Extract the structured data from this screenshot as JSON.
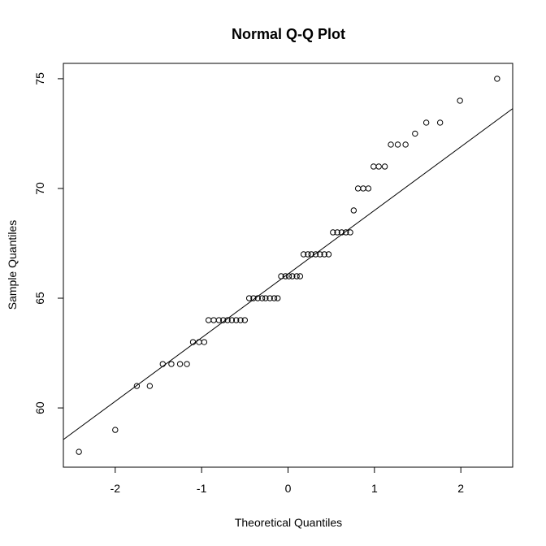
{
  "chart_data": {
    "type": "scatter",
    "title": "Normal Q-Q Plot",
    "xlabel": "Theoretical Quantiles",
    "ylabel": "Sample Quantiles",
    "xlim": [
      -2.6,
      2.6
    ],
    "ylim": [
      57.3,
      75.7
    ],
    "xticks": [
      -2,
      -1,
      0,
      1,
      2
    ],
    "yticks": [
      60,
      65,
      70,
      75
    ],
    "xtick_labels": [
      "-2",
      "-1",
      "0",
      "1",
      "2"
    ],
    "ytick_labels": [
      "60",
      "65",
      "70",
      "75"
    ],
    "grid": false,
    "marker": "open-circle",
    "reference_line": {
      "slope": 2.9,
      "intercept": 66.1
    },
    "points": [
      {
        "x": -2.42,
        "y": 58
      },
      {
        "x": -2.0,
        "y": 59
      },
      {
        "x": -1.75,
        "y": 61
      },
      {
        "x": -1.6,
        "y": 61
      },
      {
        "x": -1.45,
        "y": 62
      },
      {
        "x": -1.35,
        "y": 62
      },
      {
        "x": -1.25,
        "y": 62
      },
      {
        "x": -1.17,
        "y": 62
      },
      {
        "x": -1.1,
        "y": 63
      },
      {
        "x": -1.03,
        "y": 63
      },
      {
        "x": -0.97,
        "y": 63
      },
      {
        "x": -0.92,
        "y": 64
      },
      {
        "x": -0.86,
        "y": 64
      },
      {
        "x": -0.8,
        "y": 64
      },
      {
        "x": -0.75,
        "y": 64
      },
      {
        "x": -0.7,
        "y": 64
      },
      {
        "x": -0.65,
        "y": 64
      },
      {
        "x": -0.6,
        "y": 64
      },
      {
        "x": -0.55,
        "y": 64
      },
      {
        "x": -0.5,
        "y": 64
      },
      {
        "x": -0.45,
        "y": 65
      },
      {
        "x": -0.4,
        "y": 65
      },
      {
        "x": -0.35,
        "y": 65
      },
      {
        "x": -0.3,
        "y": 65
      },
      {
        "x": -0.26,
        "y": 65
      },
      {
        "x": -0.21,
        "y": 65
      },
      {
        "x": -0.16,
        "y": 65
      },
      {
        "x": -0.12,
        "y": 65
      },
      {
        "x": -0.08,
        "y": 66
      },
      {
        "x": -0.03,
        "y": 66
      },
      {
        "x": 0.01,
        "y": 66
      },
      {
        "x": 0.05,
        "y": 66
      },
      {
        "x": 0.1,
        "y": 66
      },
      {
        "x": 0.14,
        "y": 66
      },
      {
        "x": 0.18,
        "y": 67
      },
      {
        "x": 0.23,
        "y": 67
      },
      {
        "x": 0.27,
        "y": 67
      },
      {
        "x": 0.32,
        "y": 67
      },
      {
        "x": 0.37,
        "y": 67
      },
      {
        "x": 0.42,
        "y": 67
      },
      {
        "x": 0.47,
        "y": 67
      },
      {
        "x": 0.52,
        "y": 68
      },
      {
        "x": 0.57,
        "y": 68
      },
      {
        "x": 0.62,
        "y": 68
      },
      {
        "x": 0.67,
        "y": 68
      },
      {
        "x": 0.72,
        "y": 68
      },
      {
        "x": 0.76,
        "y": 69
      },
      {
        "x": 0.81,
        "y": 70
      },
      {
        "x": 0.87,
        "y": 70
      },
      {
        "x": 0.93,
        "y": 70
      },
      {
        "x": 0.99,
        "y": 71
      },
      {
        "x": 1.05,
        "y": 71
      },
      {
        "x": 1.12,
        "y": 71
      },
      {
        "x": 1.19,
        "y": 72
      },
      {
        "x": 1.27,
        "y": 72
      },
      {
        "x": 1.36,
        "y": 72
      },
      {
        "x": 1.47,
        "y": 72.5
      },
      {
        "x": 1.6,
        "y": 73
      },
      {
        "x": 1.76,
        "y": 73
      },
      {
        "x": 1.99,
        "y": 74
      },
      {
        "x": 2.42,
        "y": 75
      }
    ]
  }
}
